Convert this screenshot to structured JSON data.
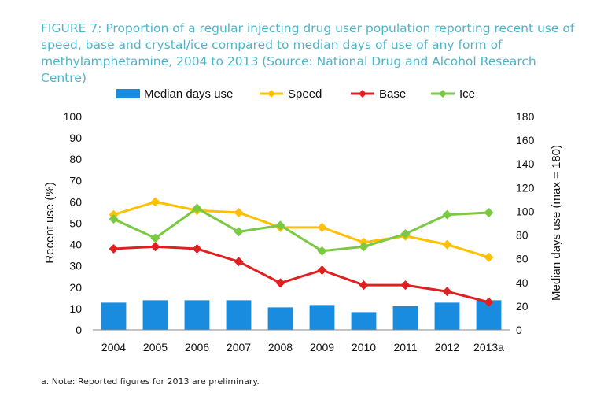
{
  "title": "FIGURE 7: Proportion of a regular injecting drug user population reporting recent use of speed, base and crystal/ice compared to median days of use of any form of methylamphetamine, 2004 to 2013 (Source: National Drug and Alcohol Research Centre)",
  "note": "a. Note: Reported figures for 2013 are preliminary.",
  "chart_data": {
    "type": "bar",
    "categories": [
      "2004",
      "2005",
      "2006",
      "2007",
      "2008",
      "2009",
      "2010",
      "2011",
      "2012",
      "2013a"
    ],
    "ylabel": "Recent use (%)",
    "y2label": "Median days use (max = 180)",
    "ylim": [
      0,
      100
    ],
    "y2lim": [
      0,
      180
    ],
    "yticks": [
      "0",
      "10",
      "20",
      "30",
      "40",
      "50",
      "60",
      "70",
      "80",
      "90",
      "100"
    ],
    "y2ticks": [
      "0",
      "20",
      "40",
      "60",
      "80",
      "100",
      "120",
      "140",
      "160",
      "180"
    ],
    "grid": false,
    "legend_position": "top",
    "series": [
      {
        "name": "Median days use",
        "type": "bar",
        "axis": "right",
        "color": "#1a8ce0",
        "values": [
          23,
          25,
          25,
          25,
          19,
          21,
          15,
          20,
          23,
          25
        ]
      },
      {
        "name": "Speed",
        "type": "line",
        "axis": "left",
        "color": "#ffc000",
        "values": [
          54,
          60,
          56,
          55,
          48,
          48,
          41,
          44,
          40,
          34
        ]
      },
      {
        "name": "Base",
        "type": "line",
        "axis": "left",
        "color": "#e02020",
        "values": [
          38,
          39,
          38,
          32,
          22,
          28,
          21,
          21,
          18,
          13
        ]
      },
      {
        "name": "Ice",
        "type": "line",
        "axis": "left",
        "color": "#7ac943",
        "values": [
          52,
          43,
          57,
          46,
          49,
          37,
          39,
          45,
          54,
          55
        ]
      }
    ]
  }
}
